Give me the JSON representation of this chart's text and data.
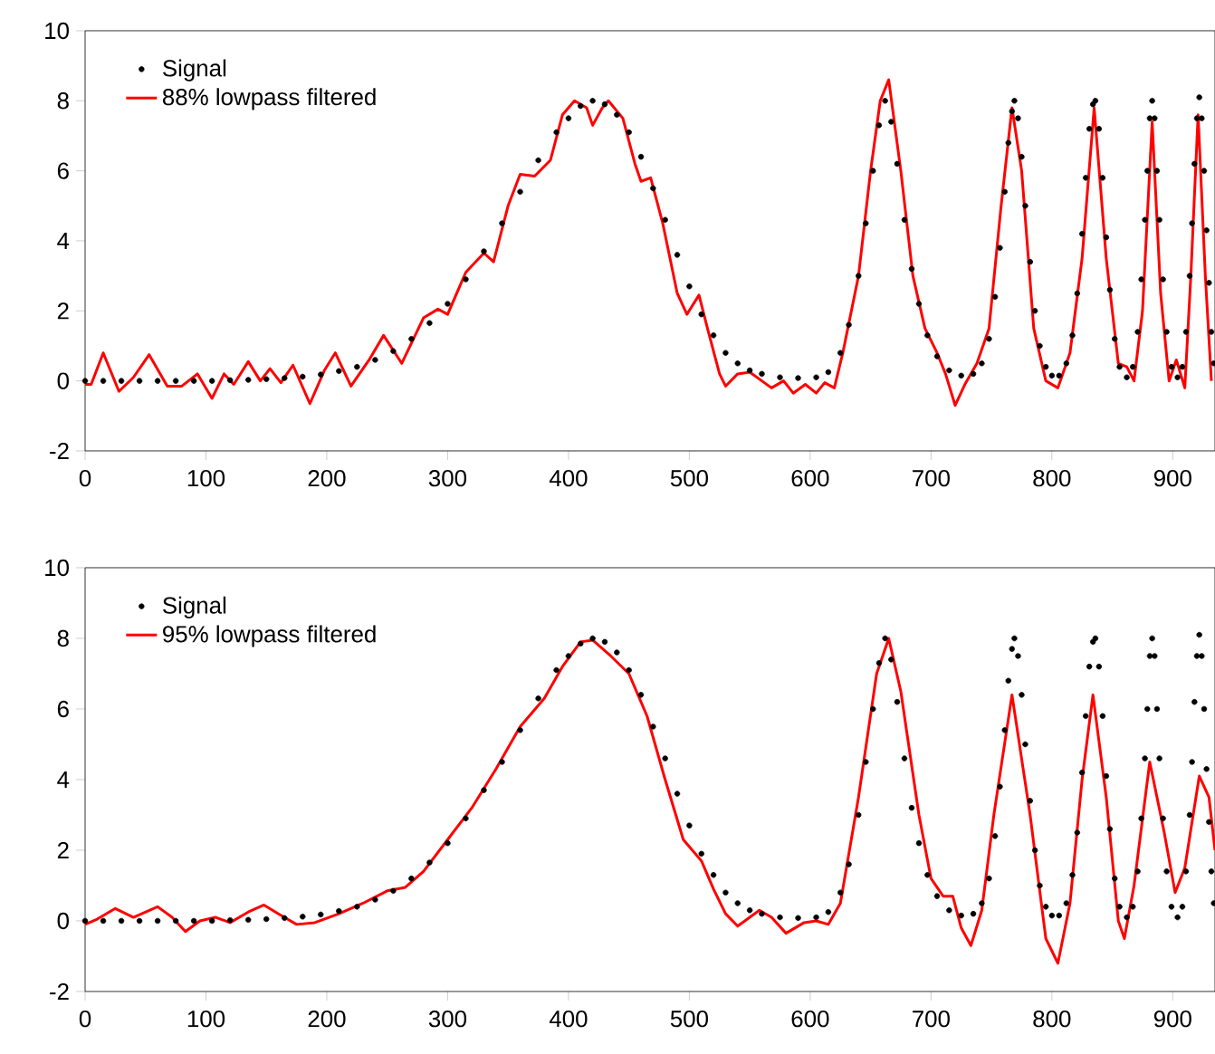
{
  "chart_data": [
    {
      "type": "line",
      "xlim": [
        0,
        935
      ],
      "ylim": [
        -2,
        10
      ],
      "xticks": [
        0,
        100,
        200,
        300,
        400,
        500,
        600,
        700,
        800,
        900
      ],
      "yticks": [
        -2,
        0,
        2,
        4,
        6,
        8,
        10
      ],
      "legend": "top left",
      "grid": false,
      "series": [
        {
          "name": "Signal",
          "type": "scatter",
          "marker": "circle",
          "color": "#000000",
          "x": [
            0,
            15,
            30,
            45,
            60,
            75,
            90,
            105,
            120,
            135,
            150,
            165,
            180,
            195,
            210,
            225,
            240,
            255,
            270,
            285,
            300,
            315,
            330,
            345,
            360,
            375,
            390,
            400,
            410,
            420,
            430,
            440,
            450,
            460,
            470,
            480,
            490,
            500,
            510,
            520,
            530,
            540,
            550,
            560,
            575,
            590,
            605,
            615,
            625,
            632,
            640,
            646,
            652,
            657,
            662,
            667,
            672,
            678,
            684,
            690,
            697,
            705,
            715,
            725,
            735,
            742,
            748,
            753,
            757,
            761,
            764,
            767,
            769,
            772,
            775,
            778,
            782,
            786,
            790,
            795,
            800,
            806,
            812,
            817,
            821,
            825,
            828,
            831,
            834,
            836,
            839,
            842,
            845,
            848,
            852,
            856,
            862,
            867,
            871,
            874,
            877,
            879,
            881,
            883,
            885,
            887,
            889,
            892,
            895,
            899,
            904,
            908,
            911,
            914,
            916,
            918,
            920,
            922,
            924,
            926,
            928,
            930,
            932,
            934
          ],
          "values": [
            0,
            0,
            0,
            0,
            0,
            0,
            0,
            0,
            0.02,
            0.03,
            0.05,
            0.08,
            0.12,
            0.18,
            0.28,
            0.4,
            0.6,
            0.85,
            1.2,
            1.65,
            2.2,
            2.9,
            3.7,
            4.5,
            5.4,
            6.3,
            7.1,
            7.5,
            7.85,
            8.0,
            7.9,
            7.6,
            7.1,
            6.4,
            5.5,
            4.6,
            3.6,
            2.7,
            1.9,
            1.3,
            0.8,
            0.5,
            0.3,
            0.2,
            0.1,
            0.08,
            0.1,
            0.25,
            0.8,
            1.6,
            3.0,
            4.5,
            6.0,
            7.3,
            8.0,
            7.4,
            6.2,
            4.6,
            3.2,
            2.2,
            1.3,
            0.7,
            0.3,
            0.15,
            0.2,
            0.5,
            1.2,
            2.4,
            3.8,
            5.4,
            6.8,
            7.7,
            8.0,
            7.5,
            6.4,
            5.0,
            3.4,
            2.0,
            1.0,
            0.4,
            0.15,
            0.15,
            0.5,
            1.3,
            2.5,
            4.2,
            5.8,
            7.2,
            7.9,
            8.0,
            7.2,
            5.8,
            4.1,
            2.6,
            1.2,
            0.4,
            0.1,
            0.4,
            1.4,
            2.9,
            4.6,
            6.0,
            7.5,
            8.0,
            7.5,
            6.0,
            4.6,
            2.9,
            1.4,
            0.4,
            0.1,
            0.4,
            1.4,
            3.0,
            4.5,
            6.2,
            7.5,
            8.1,
            7.5,
            6.0,
            4.3,
            2.8,
            1.4,
            0.5
          ]
        },
        {
          "name": "88% lowpass filtered",
          "marker": "none",
          "line_style": "solid",
          "color": "#ff0000",
          "x": [
            0,
            5,
            15,
            28,
            40,
            53,
            68,
            80,
            93,
            105,
            115,
            123,
            135,
            145,
            153,
            162,
            172,
            186,
            198,
            207,
            220,
            235,
            247,
            262,
            280,
            292,
            300,
            315,
            330,
            338,
            350,
            360,
            372,
            385,
            395,
            405,
            415,
            420,
            428,
            433,
            445,
            455,
            460,
            468,
            478,
            490,
            498,
            508,
            515,
            525,
            530,
            540,
            550,
            560,
            568,
            578,
            586,
            596,
            605,
            612,
            620,
            627,
            640,
            650,
            658,
            665,
            675,
            685,
            695,
            705,
            712,
            720,
            728,
            738,
            748,
            758,
            767,
            775,
            785,
            795,
            805,
            815,
            825,
            835,
            845,
            855,
            862,
            868,
            875,
            883,
            890,
            897,
            903,
            910,
            915,
            921,
            927,
            932
          ],
          "values": [
            -0.1,
            -0.1,
            0.8,
            -0.3,
            0.1,
            0.75,
            -0.15,
            -0.15,
            0.2,
            -0.5,
            0.2,
            -0.1,
            0.55,
            0.0,
            0.35,
            -0.05,
            0.45,
            -0.65,
            0.3,
            0.8,
            -0.15,
            0.6,
            1.3,
            0.5,
            1.8,
            2.05,
            1.9,
            3.1,
            3.65,
            3.4,
            5.0,
            5.9,
            5.85,
            6.3,
            7.6,
            8.0,
            7.8,
            7.3,
            7.8,
            8.0,
            7.5,
            6.2,
            5.7,
            5.8,
            4.5,
            2.5,
            1.9,
            2.45,
            1.5,
            0.2,
            -0.15,
            0.2,
            0.25,
            0.0,
            -0.2,
            0.0,
            -0.35,
            -0.1,
            -0.35,
            -0.05,
            -0.2,
            0.8,
            3.0,
            6.0,
            8.0,
            8.6,
            6.0,
            3.0,
            1.5,
            0.8,
            0.2,
            -0.7,
            -0.1,
            0.5,
            1.5,
            5.0,
            7.8,
            6.0,
            1.5,
            0.0,
            -0.2,
            0.8,
            3.5,
            7.8,
            3.5,
            0.5,
            0.4,
            0.0,
            2.0,
            7.4,
            2.5,
            0.0,
            0.6,
            -0.2,
            3.0,
            7.6,
            3.0,
            0.0
          ]
        }
      ]
    },
    {
      "type": "line",
      "xlim": [
        0,
        935
      ],
      "ylim": [
        -2,
        10
      ],
      "xticks": [
        0,
        100,
        200,
        300,
        400,
        500,
        600,
        700,
        800,
        900
      ],
      "yticks": [
        -2,
        0,
        2,
        4,
        6,
        8,
        10
      ],
      "legend": "top left",
      "grid": false,
      "series": [
        {
          "name": "Signal",
          "type": "scatter",
          "marker": "circle",
          "color": "#000000",
          "x": [
            0,
            15,
            30,
            45,
            60,
            75,
            90,
            105,
            120,
            135,
            150,
            165,
            180,
            195,
            210,
            225,
            240,
            255,
            270,
            285,
            300,
            315,
            330,
            345,
            360,
            375,
            390,
            400,
            410,
            420,
            430,
            440,
            450,
            460,
            470,
            480,
            490,
            500,
            510,
            520,
            530,
            540,
            550,
            560,
            575,
            590,
            605,
            615,
            625,
            632,
            640,
            646,
            652,
            657,
            662,
            667,
            672,
            678,
            684,
            690,
            697,
            705,
            715,
            725,
            735,
            742,
            748,
            753,
            757,
            761,
            764,
            767,
            769,
            772,
            775,
            778,
            782,
            786,
            790,
            795,
            800,
            806,
            812,
            817,
            821,
            825,
            828,
            831,
            834,
            836,
            839,
            842,
            845,
            848,
            852,
            856,
            862,
            867,
            871,
            874,
            877,
            879,
            881,
            883,
            885,
            887,
            889,
            892,
            895,
            899,
            904,
            908,
            911,
            914,
            916,
            918,
            920,
            922,
            924,
            926,
            928,
            930,
            932,
            934
          ],
          "values": [
            0,
            0,
            0,
            0,
            0,
            0,
            0,
            0,
            0.02,
            0.03,
            0.05,
            0.08,
            0.12,
            0.18,
            0.28,
            0.4,
            0.6,
            0.85,
            1.2,
            1.65,
            2.2,
            2.9,
            3.7,
            4.5,
            5.4,
            6.3,
            7.1,
            7.5,
            7.85,
            8.0,
            7.9,
            7.6,
            7.1,
            6.4,
            5.5,
            4.6,
            3.6,
            2.7,
            1.9,
            1.3,
            0.8,
            0.5,
            0.3,
            0.2,
            0.1,
            0.08,
            0.1,
            0.25,
            0.8,
            1.6,
            3.0,
            4.5,
            6.0,
            7.3,
            8.0,
            7.4,
            6.2,
            4.6,
            3.2,
            2.2,
            1.3,
            0.7,
            0.3,
            0.15,
            0.2,
            0.5,
            1.2,
            2.4,
            3.8,
            5.4,
            6.8,
            7.7,
            8.0,
            7.5,
            6.4,
            5.0,
            3.4,
            2.0,
            1.0,
            0.4,
            0.15,
            0.15,
            0.5,
            1.3,
            2.5,
            4.2,
            5.8,
            7.2,
            7.9,
            8.0,
            7.2,
            5.8,
            4.1,
            2.6,
            1.2,
            0.4,
            0.1,
            0.4,
            1.4,
            2.9,
            4.6,
            6.0,
            7.5,
            8.0,
            7.5,
            6.0,
            4.6,
            2.9,
            1.4,
            0.4,
            0.1,
            0.4,
            1.4,
            3.0,
            4.5,
            6.2,
            7.5,
            8.1,
            7.5,
            6.0,
            4.3,
            2.8,
            1.4,
            0.5
          ]
        },
        {
          "name": "95% lowpass filtered",
          "marker": "none",
          "line_style": "solid",
          "color": "#ff0000",
          "x": [
            0,
            10,
            25,
            40,
            60,
            72,
            83,
            95,
            108,
            120,
            135,
            148,
            160,
            175,
            190,
            210,
            230,
            250,
            265,
            280,
            300,
            320,
            340,
            360,
            380,
            395,
            410,
            420,
            435,
            450,
            465,
            480,
            495,
            510,
            520,
            530,
            540,
            550,
            558,
            568,
            580,
            595,
            605,
            615,
            625,
            640,
            655,
            665,
            675,
            690,
            700,
            710,
            718,
            725,
            733,
            742,
            752,
            767,
            782,
            795,
            805,
            815,
            825,
            834,
            845,
            855,
            860,
            868,
            881,
            893,
            902,
            910,
            922,
            930,
            935
          ],
          "values": [
            -0.1,
            0.05,
            0.35,
            0.1,
            0.4,
            0.1,
            -0.3,
            0.0,
            0.1,
            -0.05,
            0.25,
            0.45,
            0.2,
            -0.1,
            -0.05,
            0.2,
            0.5,
            0.85,
            0.95,
            1.4,
            2.3,
            3.2,
            4.3,
            5.5,
            6.3,
            7.2,
            7.9,
            7.95,
            7.5,
            7.0,
            5.8,
            4.0,
            2.3,
            1.7,
            0.9,
            0.2,
            -0.15,
            0.1,
            0.3,
            0.1,
            -0.35,
            -0.05,
            0.0,
            -0.1,
            0.5,
            3.5,
            7.0,
            8.0,
            6.5,
            3.0,
            1.2,
            0.7,
            0.7,
            -0.2,
            -0.7,
            0.3,
            3.0,
            6.4,
            3.0,
            -0.5,
            -1.2,
            0.5,
            4.0,
            6.4,
            3.5,
            0.0,
            -0.5,
            1.0,
            4.5,
            2.5,
            0.8,
            1.5,
            4.1,
            3.5,
            2.0
          ]
        }
      ]
    }
  ]
}
